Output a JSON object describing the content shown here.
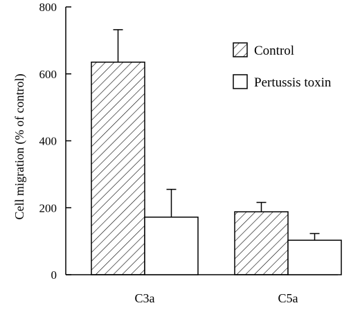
{
  "chart_data": {
    "type": "bar",
    "title": "",
    "xlabel": "",
    "ylabel": "Cell migration (% of control)",
    "ylim": [
      0,
      800
    ],
    "yticks": [
      0,
      200,
      400,
      600,
      800
    ],
    "categories": [
      "C3a",
      "C5a"
    ],
    "series": [
      {
        "name": "Control",
        "fill": "hatched",
        "values": [
          635,
          188
        ],
        "errors": [
          97,
          28
        ]
      },
      {
        "name": "Pertussis toxin",
        "fill": "open",
        "values": [
          172,
          103
        ],
        "errors": [
          83,
          20
        ]
      }
    ],
    "legend": "top-right",
    "grid": false
  },
  "colors": {
    "stroke": "#000000",
    "background": "#ffffff"
  }
}
